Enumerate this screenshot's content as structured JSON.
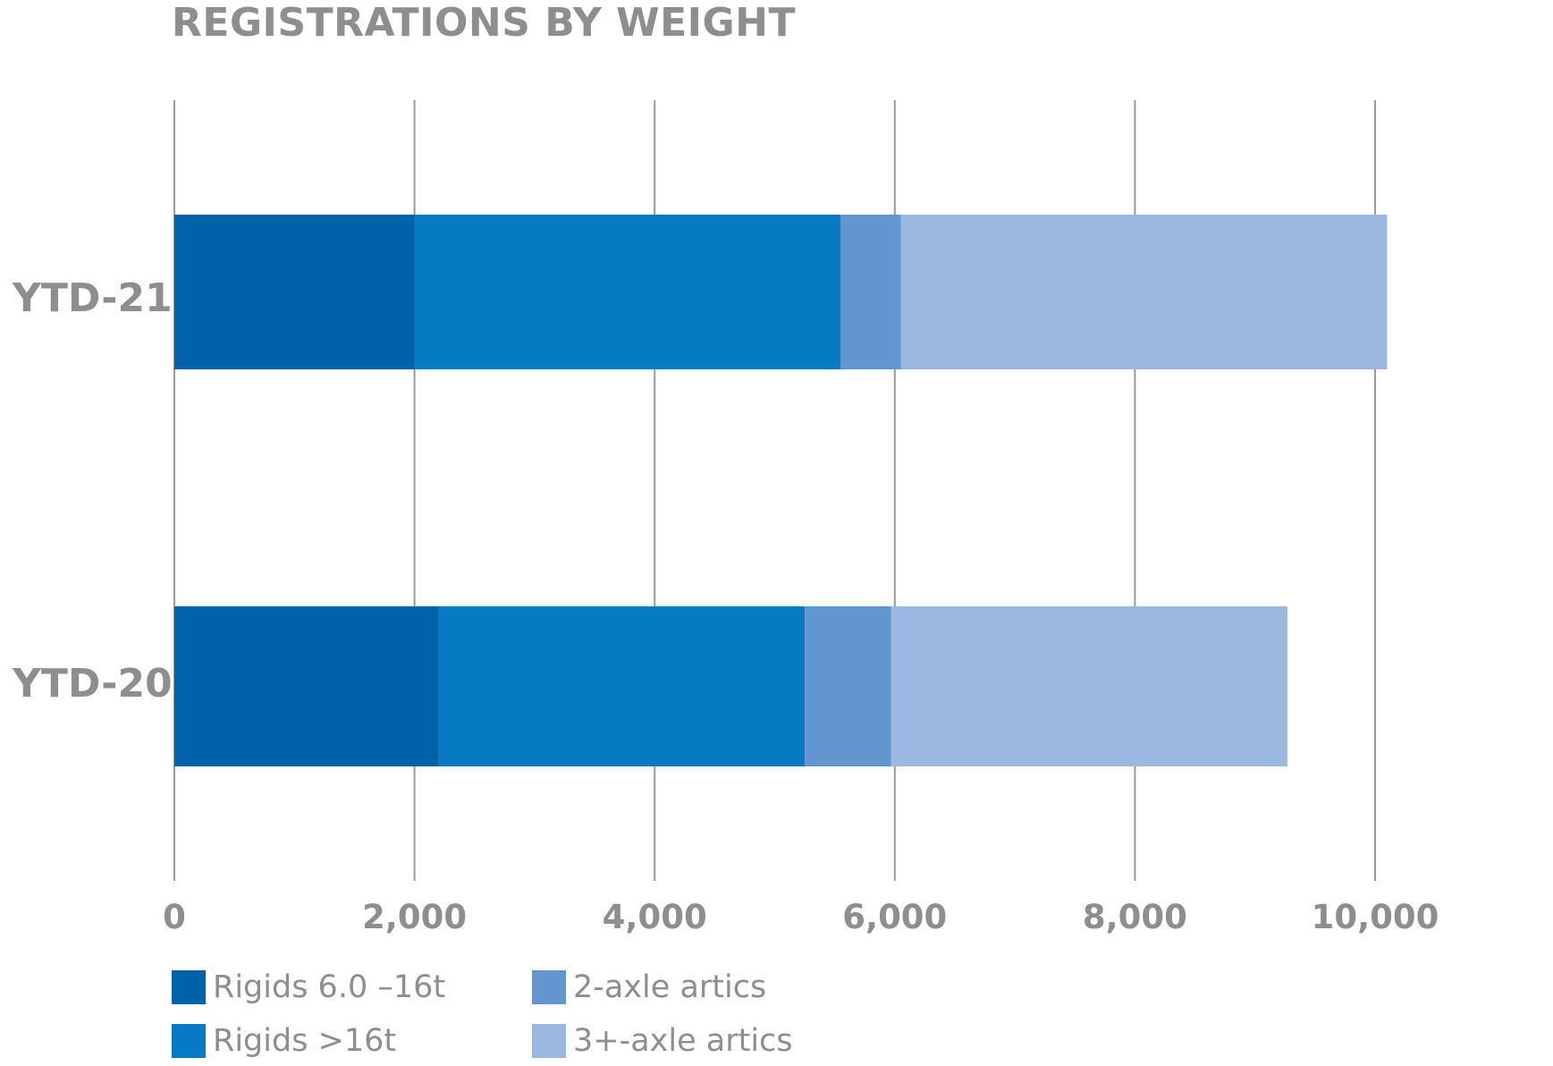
{
  "chart_data": {
    "type": "bar",
    "orientation": "horizontal",
    "stacked": true,
    "title": "REGISTRATIONS BY WEIGHT",
    "categories": [
      "YTD-21",
      "YTD-20"
    ],
    "series": [
      {
        "name": "Rigids 6.0 –16t",
        "color": "#0062A8",
        "values": [
          2000,
          2200
        ]
      },
      {
        "name": "Rigids >16t",
        "color": "#077AC4",
        "values": [
          3550,
          3050
        ]
      },
      {
        "name": "2-axle artics",
        "color": "#6396CF",
        "values": [
          500,
          720
        ]
      },
      {
        "name": "3+-axle artics",
        "color": "#9AB8E2",
        "values": [
          4050,
          3300
        ]
      }
    ],
    "xlim": [
      0,
      10000
    ],
    "xticks": [
      0,
      2000,
      4000,
      6000,
      8000,
      10000
    ],
    "xtick_labels": [
      "0",
      "2,000",
      "4,000",
      "6,000",
      "8,000",
      "10,000"
    ],
    "grid": true,
    "legend_position": "bottom",
    "xlabel": "",
    "ylabel": ""
  }
}
